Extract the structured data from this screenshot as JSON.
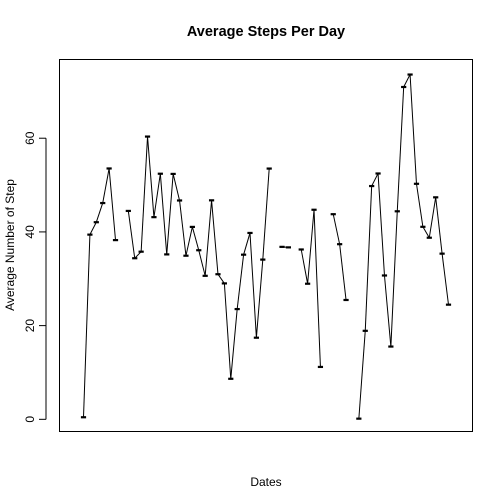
{
  "chart_data": {
    "type": "line",
    "title": "Average Steps Per Day",
    "xlabel": "Dates",
    "ylabel": "Average Number of Step",
    "ylim": [
      -2.6,
      76.8
    ],
    "yticks": [
      0,
      20,
      40,
      60
    ],
    "ytick_labels": [
      "0",
      "20",
      "40",
      "60"
    ],
    "x_tick_labels_shown": false,
    "grid": false,
    "legend": "none",
    "line_color": "#000000",
    "series": [
      {
        "values": [
          0.44,
          39.42,
          42.07,
          46.16,
          53.54,
          38.25,
          null,
          44.48,
          34.38,
          35.78,
          60.35,
          43.15,
          52.42,
          35.2,
          52.38,
          46.71,
          34.92,
          41.07,
          36.09,
          30.63,
          46.74,
          30.97,
          29.01,
          8.65,
          23.53,
          35.14,
          39.78,
          17.42,
          34.09,
          53.52,
          null,
          36.81,
          36.7,
          null,
          36.25,
          28.94,
          44.73,
          11.18,
          null,
          43.78,
          37.38,
          25.47,
          null,
          0.14,
          18.89,
          49.79,
          52.47,
          30.7,
          15.53,
          44.4,
          70.93,
          73.59,
          50.27,
          41.09,
          38.76,
          47.38,
          35.36,
          24.47
        ]
      }
    ]
  }
}
